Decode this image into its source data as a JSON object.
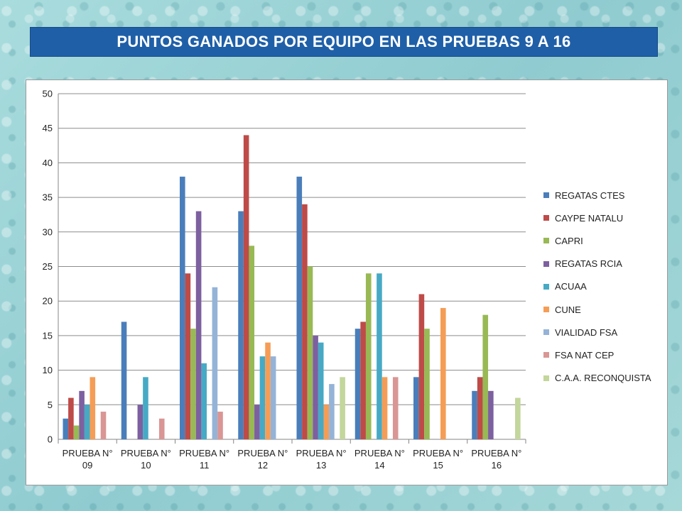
{
  "title": "PUNTOS GANADOS POR EQUIPO EN LAS PRUEBAS 9 A 16",
  "chart_data": {
    "type": "bar",
    "title": "PUNTOS GANADOS POR EQUIPO EN LAS PRUEBAS 9 A 16",
    "xlabel": "",
    "ylabel": "",
    "ylim": [
      0,
      50
    ],
    "yticks": [
      "0",
      "5",
      "10",
      "15",
      "20",
      "25",
      "30",
      "35",
      "40",
      "45",
      "50"
    ],
    "grid": true,
    "legend_position": "right",
    "categories": [
      [
        "PRUEBA N°",
        "09"
      ],
      [
        "PRUEBA N°",
        "10"
      ],
      [
        "PRUEBA N°",
        "11"
      ],
      [
        "PRUEBA N°",
        "12"
      ],
      [
        "PRUEBA N°",
        "13"
      ],
      [
        "PRUEBA N°",
        "14"
      ],
      [
        "PRUEBA N°",
        "15"
      ],
      [
        "PRUEBA N°",
        "16"
      ]
    ],
    "series": [
      {
        "name": "REGATAS CTES",
        "color": "#4a7ebb",
        "values": [
          3,
          17,
          38,
          33,
          38,
          16,
          9,
          7
        ]
      },
      {
        "name": "CAYPE NATALU",
        "color": "#be4b48",
        "values": [
          6,
          0,
          24,
          44,
          34,
          17,
          21,
          9
        ]
      },
      {
        "name": "CAPRI",
        "color": "#98b954",
        "values": [
          2,
          0,
          16,
          28,
          25,
          24,
          16,
          18
        ]
      },
      {
        "name": "REGATAS RCIA",
        "color": "#7d60a0",
        "values": [
          7,
          5,
          33,
          5,
          15,
          0,
          0,
          7
        ]
      },
      {
        "name": "ACUAA",
        "color": "#46aac5",
        "values": [
          5,
          9,
          11,
          12,
          14,
          24,
          0,
          0
        ]
      },
      {
        "name": "CUNE",
        "color": "#f59d56",
        "values": [
          9,
          0,
          0,
          14,
          5,
          9,
          19,
          0
        ]
      },
      {
        "name": "VIALIDAD FSA",
        "color": "#95b3d7",
        "values": [
          0,
          0,
          22,
          12,
          8,
          0,
          0,
          0
        ]
      },
      {
        "name": "FSA NAT CEP",
        "color": "#d99694",
        "values": [
          4,
          3,
          4,
          0,
          0,
          9,
          0,
          0
        ]
      },
      {
        "name": "C.A.A. RECONQUISTA",
        "color": "#c3d69b",
        "values": [
          0,
          0,
          0,
          0,
          9,
          0,
          0,
          6
        ]
      }
    ]
  }
}
